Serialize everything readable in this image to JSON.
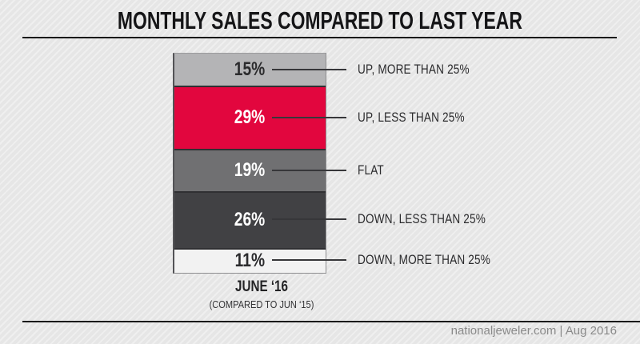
{
  "title": "MONTHLY SALES COMPARED TO LAST YEAR",
  "footer": {
    "credit": "nationaljeweler.com | Aug 2016"
  },
  "caption": {
    "period": "JUNE ‘16",
    "comparison": "(COMPARED TO JUN ‘15)"
  },
  "colors": {
    "accent_red": "#e2063e",
    "connector_line": "#37373a",
    "rule_line": "#1a1a1a",
    "background_base": "#e6e6e6"
  },
  "chart_data": {
    "type": "bar",
    "subtype": "single-stacked-column",
    "title": "MONTHLY SALES COMPARED TO LAST YEAR",
    "category": "JUNE ‘16 (COMPARED TO JUN ‘15)",
    "unit": "percent of respondents",
    "total": 100,
    "legend_position": "right-callouts",
    "segments": [
      {
        "label": "UP, MORE THAN 25%",
        "value": 15,
        "value_label": "15%",
        "color": "#b4b4b6",
        "text_color": "#2b2b2d"
      },
      {
        "label": "UP, LESS THAN 25%",
        "value": 29,
        "value_label": "29%",
        "color": "#e2063e",
        "text_color": "#ffffff"
      },
      {
        "label": "FLAT",
        "value": 19,
        "value_label": "19%",
        "color": "#707072",
        "text_color": "#ffffff"
      },
      {
        "label": "DOWN, LESS THAN 25%",
        "value": 26,
        "value_label": "26%",
        "color": "#414144",
        "text_color": "#ffffff"
      },
      {
        "label": "DOWN, MORE THAN 25%",
        "value": 11,
        "value_label": "11%",
        "color": "#f2f2f2",
        "text_color": "#2b2b2d"
      }
    ]
  }
}
